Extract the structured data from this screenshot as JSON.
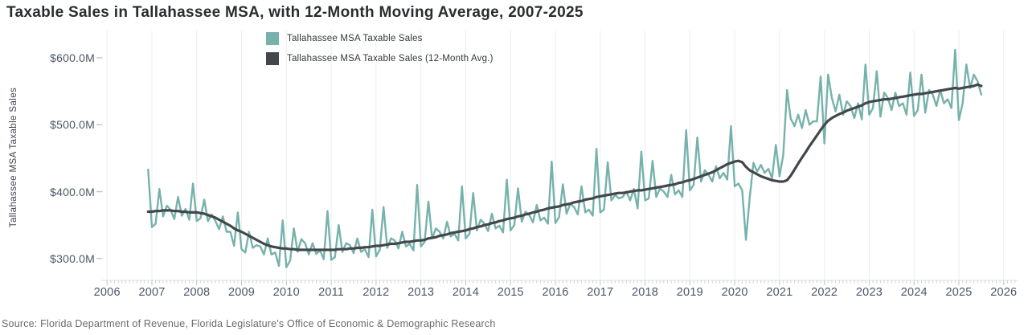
{
  "header": {
    "title": "Taxable Sales in Tallahassee MSA, with 12-Month Moving Average, 2007-2025"
  },
  "legend": {
    "items": [
      {
        "label": "Tallahassee MSA Taxable Sales",
        "color": "#76b2ab"
      },
      {
        "label": "Tallahassee MSA Taxable Sales (12-Month Avg.)",
        "color": "#43474b"
      }
    ]
  },
  "y_axis": {
    "title": "Tallahassee MSA Taxable Sales",
    "ticks": [
      {
        "label": "$600.0M",
        "value": 600
      },
      {
        "label": "$500.0M",
        "value": 500
      },
      {
        "label": "$400.0M",
        "value": 400
      },
      {
        "label": "$300.0M",
        "value": 300
      }
    ]
  },
  "x_axis": {
    "ticks": [
      "2006",
      "2007",
      "2008",
      "2009",
      "2010",
      "2011",
      "2012",
      "2013",
      "2014",
      "2015",
      "2016",
      "2017",
      "2018",
      "2019",
      "2020",
      "2021",
      "2022",
      "2023",
      "2024",
      "2025",
      "2026"
    ]
  },
  "footer": {
    "source": "Source: Florida Department of Revenue, Florida Legislature's Office of Economic & Demographic Research"
  },
  "chart_data": {
    "type": "line",
    "title": "Taxable Sales in Tallahassee MSA, with 12-Month Moving Average, 2007-2025",
    "ylabel": "Tallahassee MSA Taxable Sales",
    "unit": "USD millions",
    "frequency": "monthly",
    "x_start": "2006-12",
    "x_end": "2025-07",
    "xlim_years": [
      2005.9,
      2026.3
    ],
    "ylim": [
      264,
      645
    ],
    "grid": "vertical-year-gridlines-only",
    "legend_position": "top-center",
    "series": [
      {
        "name": "Tallahassee MSA Taxable Sales",
        "color": "#76b2ab",
        "values": [
          433,
          347,
          352,
          404,
          363,
          379,
          373,
          359,
          392,
          364,
          374,
          358,
          412,
          356,
          360,
          388,
          356,
          366,
          356,
          344,
          363,
          340,
          340,
          319,
          369,
          314,
          309,
          340,
          316,
          320,
          318,
          306,
          330,
          306,
          309,
          289,
          357,
          287,
          297,
          345,
          310,
          329,
          323,
          306,
          323,
          307,
          312,
          299,
          371,
          298,
          302,
          350,
          310,
          323,
          320,
          308,
          330,
          310,
          314,
          302,
          373,
          303,
          313,
          377,
          316,
          330,
          327,
          315,
          340,
          318,
          322,
          312,
          410,
          318,
          325,
          385,
          330,
          345,
          340,
          330,
          355,
          333,
          337,
          327,
          408,
          330,
          337,
          398,
          342,
          358,
          352,
          341,
          367,
          345,
          349,
          339,
          418,
          342,
          350,
          405,
          355,
          370,
          365,
          354,
          380,
          357,
          361,
          352,
          445,
          353,
          362,
          411,
          367,
          382,
          377,
          366,
          408,
          369,
          373,
          364,
          464,
          369,
          373,
          444,
          387,
          395,
          390,
          392,
          400,
          387,
          404,
          375,
          460,
          387,
          390,
          446,
          392,
          405,
          400,
          392,
          425,
          396,
          402,
          392,
          492,
          402,
          410,
          481,
          415,
          432,
          425,
          415,
          438,
          420,
          428,
          418,
          498,
          408,
          412,
          402,
          328,
          390,
          443,
          430,
          440,
          428,
          434,
          420,
          470,
          423,
          455,
          552,
          509,
          498,
          515,
          495,
          522,
          500,
          505,
          505,
          572,
          472,
          575,
          540,
          520,
          545,
          515,
          535,
          528,
          510,
          532,
          508,
          590,
          515,
          525,
          580,
          512,
          548,
          540,
          522,
          548,
          528,
          532,
          515,
          578,
          513,
          522,
          575,
          518,
          552,
          545,
          528,
          552,
          532,
          538,
          525,
          612,
          507,
          532,
          590,
          555,
          575,
          565,
          545
        ]
      },
      {
        "name": "Tallahassee MSA Taxable Sales (12-Month Avg.)",
        "color": "#43474b",
        "values": [
          370,
          370,
          371,
          371,
          372,
          372,
          372,
          371,
          371,
          370,
          370,
          369,
          369,
          369,
          368,
          367,
          365,
          363,
          361,
          358,
          355,
          352,
          349,
          345,
          342,
          340,
          337,
          334,
          331,
          328,
          325,
          322,
          320,
          318,
          317,
          316,
          315,
          315,
          314,
          314,
          313,
          313,
          313,
          313,
          313,
          313,
          313,
          313,
          313,
          313,
          313,
          314,
          314,
          314,
          315,
          315,
          316,
          316,
          317,
          317,
          318,
          319,
          319,
          320,
          321,
          322,
          322,
          323,
          324,
          325,
          325,
          326,
          327,
          327,
          328,
          330,
          331,
          332,
          334,
          335,
          336,
          338,
          339,
          340,
          341,
          342,
          344,
          345,
          347,
          348,
          350,
          351,
          353,
          354,
          356,
          357,
          359,
          360,
          361,
          363,
          364,
          366,
          367,
          369,
          370,
          372,
          373,
          375,
          376,
          377,
          378,
          380,
          381,
          382,
          384,
          385,
          386,
          388,
          389,
          390,
          392,
          393,
          394,
          395,
          396,
          397,
          398,
          398,
          399,
          400,
          401,
          402,
          402,
          403,
          404,
          405,
          406,
          407,
          408,
          409,
          410,
          411,
          413,
          414,
          416,
          417,
          419,
          421,
          423,
          425,
          427,
          429,
          432,
          435,
          438,
          441,
          443,
          445,
          446,
          444,
          437,
          432,
          429,
          426,
          423,
          421,
          419,
          417,
          416,
          415,
          415,
          417,
          424,
          433,
          442,
          451,
          459,
          468,
          476,
          484,
          492,
          500,
          506,
          510,
          513,
          516,
          518,
          521,
          523,
          525,
          527,
          529,
          532,
          534,
          535,
          536,
          537,
          538,
          538,
          539,
          540,
          541,
          542,
          543,
          544,
          545,
          546,
          546,
          547,
          548,
          549,
          550,
          551,
          552,
          553,
          554,
          555,
          554,
          555,
          556,
          557,
          558,
          560,
          558
        ]
      }
    ]
  }
}
